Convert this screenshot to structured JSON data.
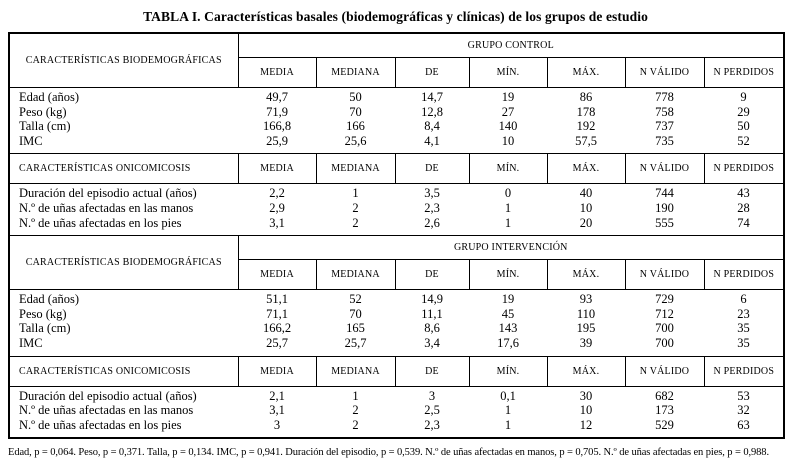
{
  "title": "TABLA I. Características basales (biodemográficas y clínicas) de los grupos de estudio",
  "stat_headers": [
    "MEDIA",
    "MEDIANA",
    "DE",
    "MÍN.",
    "MÁX.",
    "N VÁLIDO",
    "N PERDIDOS"
  ],
  "sections": [
    {
      "group_label": "GRUPO CONTROL",
      "bio_header": "CARACTERÍSTICAS BIODEMOGRÁFICAS",
      "onico_header": "CARACTERÍSTICAS ONICOMICOSIS",
      "bio_rows": [
        {
          "label": "Edad (años)",
          "values": [
            "49,7",
            "50",
            "14,7",
            "19",
            "86",
            "778",
            "9"
          ]
        },
        {
          "label": "Peso (kg)",
          "values": [
            "71,9",
            "70",
            "12,8",
            "27",
            "178",
            "758",
            "29"
          ]
        },
        {
          "label": "Talla (cm)",
          "values": [
            "166,8",
            "166",
            "8,4",
            "140",
            "192",
            "737",
            "50"
          ]
        },
        {
          "label": "IMC",
          "values": [
            "25,9",
            "25,6",
            "4,1",
            "10",
            "57,5",
            "735",
            "52"
          ]
        }
      ],
      "onico_rows": [
        {
          "label": "Duración del episodio actual (años)",
          "values": [
            "2,2",
            "1",
            "3,5",
            "0",
            "40",
            "744",
            "43"
          ]
        },
        {
          "label": "N.º de uñas afectadas en las manos",
          "values": [
            "2,9",
            "2",
            "2,3",
            "1",
            "10",
            "190",
            "28"
          ]
        },
        {
          "label": "N.º de uñas afectadas en los pies",
          "values": [
            "3,1",
            "2",
            "2,6",
            "1",
            "20",
            "555",
            "74"
          ]
        }
      ]
    },
    {
      "group_label": "GRUPO INTERVENCIÓN",
      "bio_header": "CARACTERÍSTICAS BIODEMOGRÁFICAS",
      "onico_header": "CARACTERÍSTICAS ONICOMICOSIS",
      "bio_rows": [
        {
          "label": "Edad (años)",
          "values": [
            "51,1",
            "52",
            "14,9",
            "19",
            "93",
            "729",
            "6"
          ]
        },
        {
          "label": "Peso (kg)",
          "values": [
            "71,1",
            "70",
            "11,1",
            "45",
            "110",
            "712",
            "23"
          ]
        },
        {
          "label": "Talla (cm)",
          "values": [
            "166,2",
            "165",
            "8,6",
            "143",
            "195",
            "700",
            "35"
          ]
        },
        {
          "label": "IMC",
          "values": [
            "25,7",
            "25,7",
            "3,4",
            "17,6",
            "39",
            "700",
            "35"
          ]
        }
      ],
      "onico_rows": [
        {
          "label": "Duración del episodio actual (años)",
          "values": [
            "2,1",
            "1",
            "3",
            "0,1",
            "30",
            "682",
            "53"
          ]
        },
        {
          "label": "N.º de uñas afectadas en las manos",
          "values": [
            "3,1",
            "2",
            "2,5",
            "1",
            "10",
            "173",
            "32"
          ]
        },
        {
          "label": "N.º de uñas afectadas en los pies",
          "values": [
            "3",
            "2",
            "2,3",
            "1",
            "12",
            "529",
            "63"
          ]
        }
      ]
    }
  ],
  "footnote": "Edad, p = 0,064. Peso, p = 0,371. Talla, p = 0,134. IMC, p = 0,941. Duración del episodio, p = 0,539. N.º de uñas afectadas en manos, p = 0,705. N.º de uñas afectadas en pies, p = 0,988."
}
